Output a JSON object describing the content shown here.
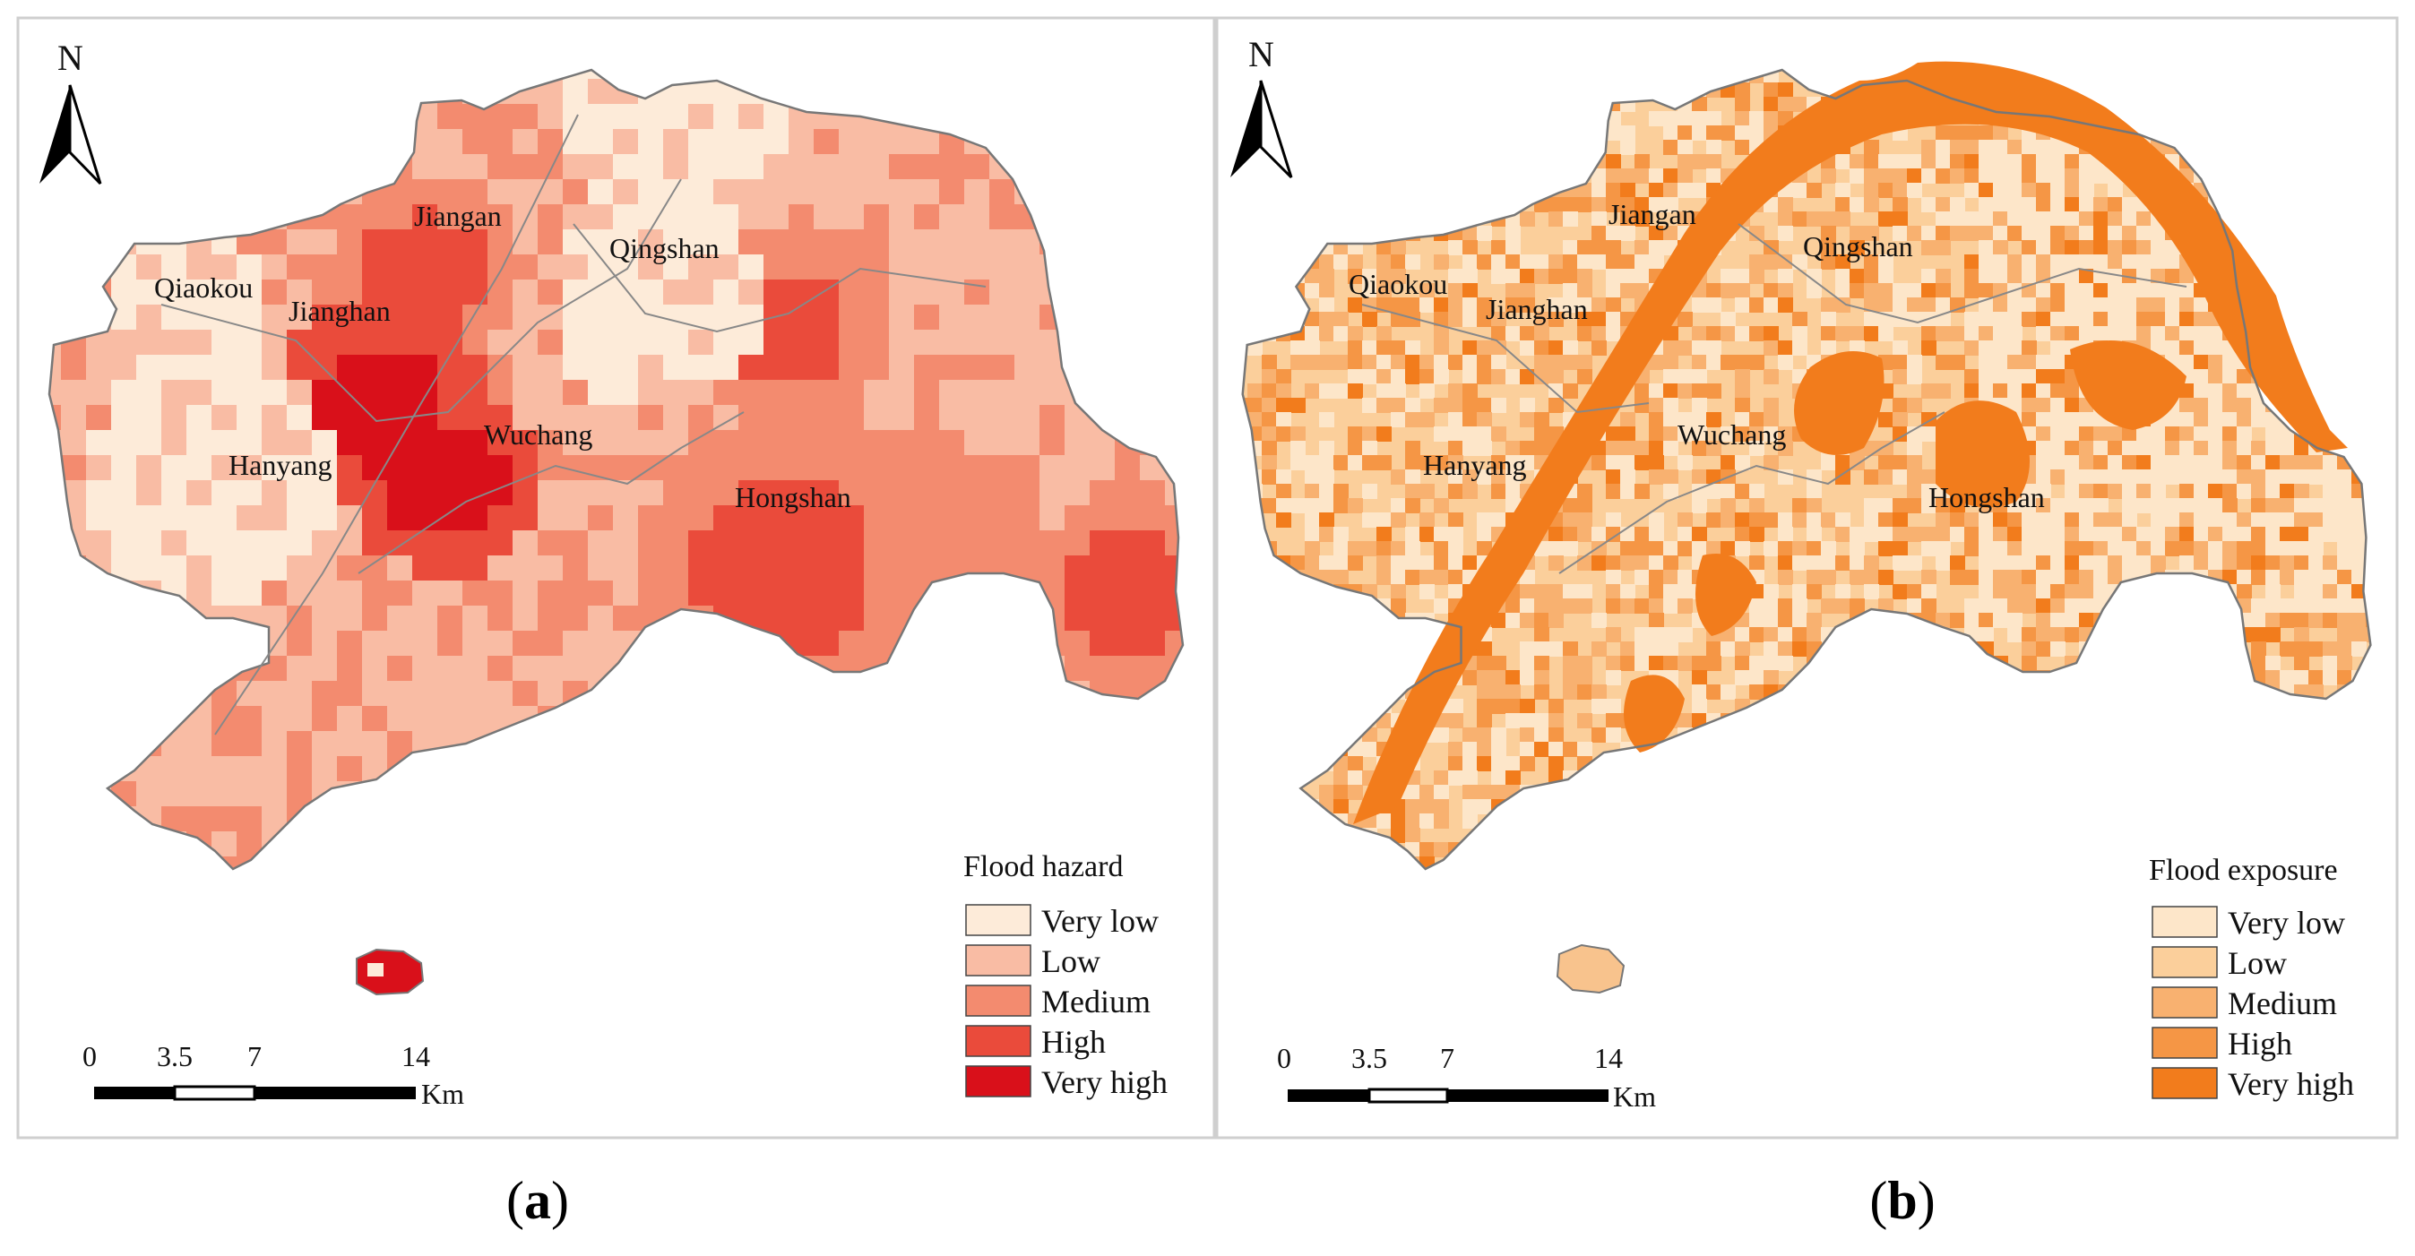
{
  "panels": [
    {
      "id": "a",
      "caption_open": "(",
      "caption_letter": "a",
      "caption_close": ")",
      "north": "N",
      "legend_title": "Flood hazard",
      "classes": [
        {
          "label": "Very low",
          "color": "#fdebd9"
        },
        {
          "label": "Low",
          "color": "#f9bca4"
        },
        {
          "label": "Medium",
          "color": "#f38b6f"
        },
        {
          "label": "High",
          "color": "#ea4b3b"
        },
        {
          "label": "Very high",
          "color": "#d9101a"
        }
      ],
      "districts": [
        "Qiaokou",
        "Jianghan",
        "Jiangan",
        "Qingshan",
        "Hanyang",
        "Wuchang",
        "Hongshan"
      ],
      "scale_ticks": [
        "0",
        "3.5",
        "7",
        "14"
      ],
      "scale_unit": "Km"
    },
    {
      "id": "b",
      "caption_open": "(",
      "caption_letter": "b",
      "caption_close": ")",
      "north": "N",
      "legend_title": "Flood exposure",
      "classes": [
        {
          "label": "Very low",
          "color": "#fde6c9"
        },
        {
          "label": "Low",
          "color": "#fbcf9b"
        },
        {
          "label": "Medium",
          "color": "#f8b170"
        },
        {
          "label": "High",
          "color": "#f59645"
        },
        {
          "label": "Very high",
          "color": "#f27c1c"
        }
      ],
      "districts": [
        "Qiaokou",
        "Jianghan",
        "Jiangan",
        "Qingshan",
        "Hanyang",
        "Wuchang",
        "Hongshan"
      ],
      "scale_ticks": [
        "0",
        "3.5",
        "7",
        "14"
      ],
      "scale_unit": "Km"
    }
  ]
}
